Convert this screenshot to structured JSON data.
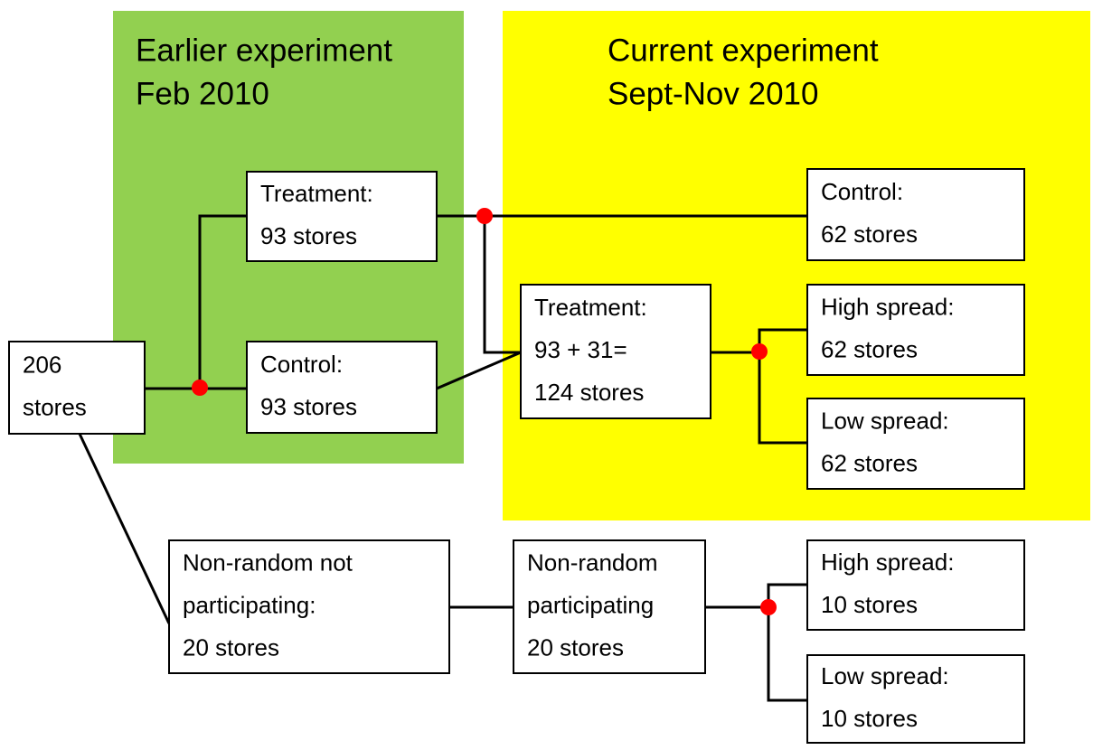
{
  "panels": [
    {
      "title": [
        "Earlier experiment",
        "Feb 2010"
      ]
    },
    {
      "title": [
        "Current experiment",
        "Sept-Nov 2010"
      ]
    }
  ],
  "nodes": [
    {
      "lines": [
        "206",
        "stores"
      ]
    },
    {
      "lines": [
        "Treatment:",
        "93 stores"
      ]
    },
    {
      "lines": [
        "Control:",
        "93 stores"
      ]
    },
    {
      "lines": [
        "Control:",
        "62 stores"
      ]
    },
    {
      "lines": [
        "Treatment:",
        "93 + 31=",
        "124 stores"
      ]
    },
    {
      "lines": [
        "High spread:",
        "62 stores"
      ]
    },
    {
      "lines": [
        "Low spread:",
        "62 stores"
      ]
    },
    {
      "lines": [
        "Non-random not",
        "participating:",
        "20 stores"
      ]
    },
    {
      "lines": [
        "Non-random",
        "participating",
        "20 stores"
      ]
    },
    {
      "lines": [
        "High spread:",
        "10 stores"
      ]
    },
    {
      "lines": [
        "Low spread:",
        "10 stores"
      ]
    }
  ]
}
